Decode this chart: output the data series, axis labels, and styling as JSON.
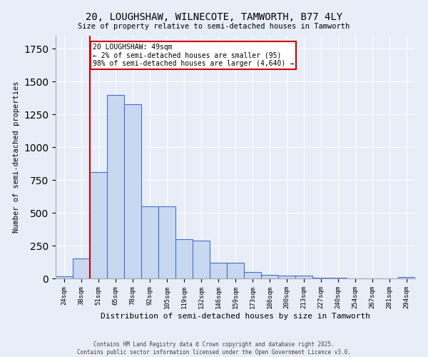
{
  "title_line1": "20, LOUGHSHAW, WILNECOTE, TAMWORTH, B77 4LY",
  "title_line2": "Size of property relative to semi-detached houses in Tamworth",
  "xlabel": "Distribution of semi-detached houses by size in Tamworth",
  "ylabel": "Number of semi-detached properties",
  "categories": [
    "24sqm",
    "38sqm",
    "51sqm",
    "65sqm",
    "78sqm",
    "92sqm",
    "105sqm",
    "119sqm",
    "132sqm",
    "146sqm",
    "159sqm",
    "173sqm",
    "186sqm",
    "200sqm",
    "213sqm",
    "227sqm",
    "240sqm",
    "254sqm",
    "267sqm",
    "281sqm",
    "294sqm"
  ],
  "values": [
    15,
    150,
    810,
    1400,
    1330,
    550,
    550,
    300,
    290,
    120,
    120,
    50,
    25,
    20,
    20,
    5,
    5,
    2,
    2,
    2,
    10
  ],
  "bar_color": "#c8d8f0",
  "bar_edge_color": "#4472c4",
  "annotation_text": "20 LOUGHSHAW: 49sqm\n← 2% of semi-detached houses are smaller (95)\n98% of semi-detached houses are larger (4,640) →",
  "annotation_box_color": "#ffffff",
  "annotation_box_edge": "#cc0000",
  "vline_color": "#cc0000",
  "ylim": [
    0,
    1850
  ],
  "background_color": "#e8eef8",
  "footer_line1": "Contains HM Land Registry data © Crown copyright and database right 2025.",
  "footer_line2": "Contains public sector information licensed under the Open Government Licence v3.0."
}
